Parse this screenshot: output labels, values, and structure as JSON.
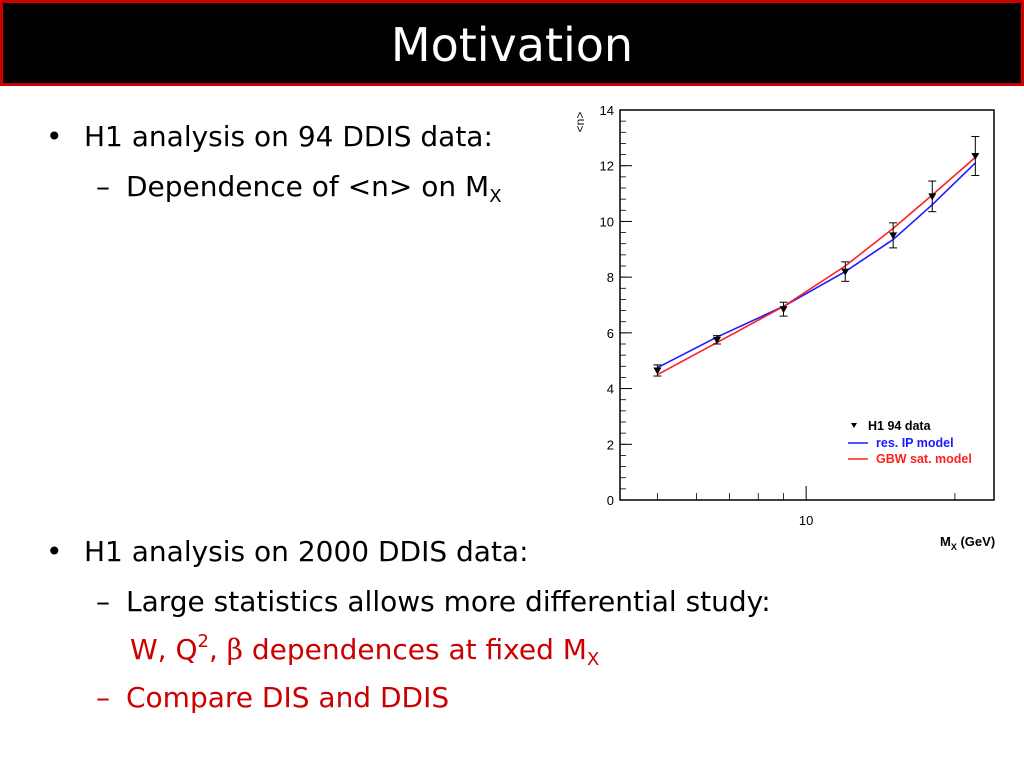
{
  "slide": {
    "title": "Motivation",
    "bullet1": {
      "mark": "•",
      "text": "H1 analysis on 94 DDIS data:"
    },
    "sub1": {
      "mark": "–",
      "text": "Dependence of <n> on M",
      "subscript": "X"
    },
    "bullet2": {
      "mark": "•",
      "text": "H1 analysis on 2000 DDIS data:"
    },
    "sub2": {
      "mark": "–",
      "text": "Large statistics allows more differential study:"
    },
    "sub2_cont": {
      "a": "W, Q",
      "sup": "2",
      "b": ", ",
      "beta": "β",
      "c": " dependences at fixed M",
      "subscript": "X"
    },
    "sub3": {
      "mark": "–",
      "text": "Compare DIS and DDIS"
    }
  },
  "colors": {
    "title_bg": "#000000",
    "title_border": "#cc0000",
    "accent_red": "#cc0000",
    "ip_model": "#1a1aff",
    "gbw_model": "#ff2020"
  },
  "chart_data": {
    "type": "line",
    "xscale": "log",
    "xlim": [
      4.2,
      24
    ],
    "ylim": [
      0,
      14
    ],
    "yticks": [
      0,
      2,
      4,
      6,
      8,
      10,
      12,
      14
    ],
    "ytick_labels": [
      "0",
      "2",
      "4",
      "6",
      "8",
      "10",
      "12",
      "14"
    ],
    "xtick_labels": [
      {
        "value": 10,
        "label": "10"
      }
    ],
    "ylabel": "<n>",
    "xlabel_main": "M",
    "xlabel_sub": "X",
    "xlabel_unit": " (GeV)",
    "data": {
      "name": "H1 94 data",
      "x": [
        5.0,
        6.6,
        9.0,
        12.0,
        15.0,
        18.0,
        22.0
      ],
      "y": [
        4.65,
        5.75,
        6.85,
        8.2,
        9.5,
        10.9,
        12.35
      ],
      "err": [
        0.2,
        0.15,
        0.25,
        0.35,
        0.45,
        0.55,
        0.7
      ]
    },
    "series": [
      {
        "name": "res. IP model",
        "color": "#1a1aff",
        "x": [
          5.0,
          6.6,
          9.0,
          12.0,
          15.0,
          18.0,
          22.0
        ],
        "y": [
          4.75,
          5.85,
          6.95,
          8.2,
          9.35,
          10.6,
          12.1
        ]
      },
      {
        "name": "GBW sat. model",
        "color": "#ff2020",
        "x": [
          5.0,
          6.6,
          9.0,
          12.0,
          15.0,
          18.0,
          22.0
        ],
        "y": [
          4.5,
          5.65,
          6.95,
          8.4,
          9.75,
          10.95,
          12.3
        ]
      }
    ],
    "legend": "bottom-right"
  }
}
